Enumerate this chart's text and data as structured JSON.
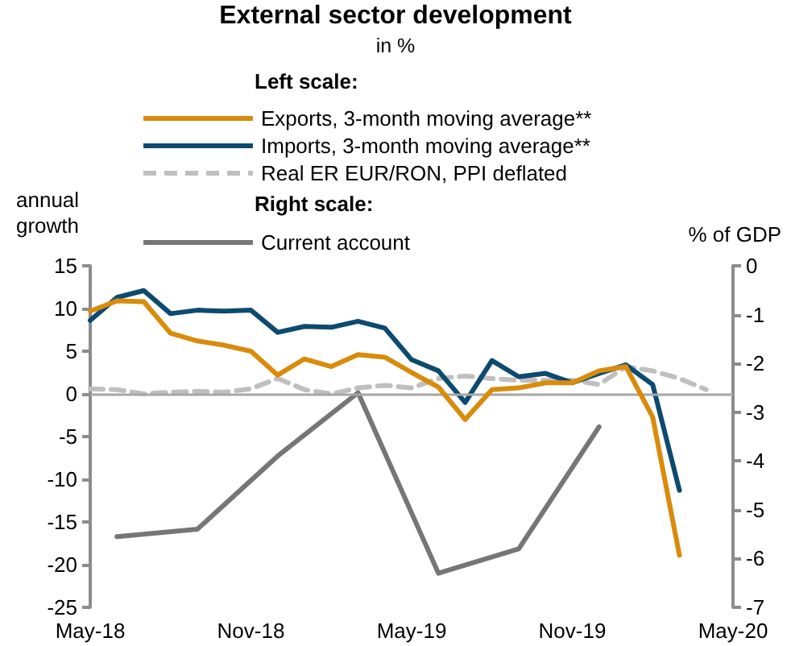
{
  "chart_data": {
    "type": "line",
    "title": "External sector development",
    "subtitle": "in %",
    "ylabel": "annual growth",
    "y2label": "% of GDP",
    "annotations": [
      "Left scale:",
      "Right scale:"
    ],
    "categories": [
      "May-18",
      null,
      null,
      null,
      null,
      null,
      "Nov-18",
      null,
      null,
      null,
      null,
      null,
      "May-19",
      null,
      null,
      null,
      null,
      null,
      "Nov-19",
      null,
      null,
      null,
      null,
      null,
      "May-20"
    ],
    "series": [
      {
        "name": "Exports, 3-month moving average**",
        "color": "#d98b0b",
        "values": [
          9.7,
          10.9,
          10.8,
          7.1,
          6.2,
          5.7,
          5.0,
          2.2,
          4.1,
          3.2,
          4.6,
          4.3,
          2.5,
          0.8,
          -3.0,
          0.5,
          0.7,
          1.3,
          1.3,
          2.7,
          3.2,
          -2.7,
          -18.9,
          null,
          null
        ]
      },
      {
        "name": "Imports, 3-month moving average**",
        "color": "#0d4a70",
        "values": [
          8.6,
          11.3,
          12.1,
          9.4,
          9.8,
          9.7,
          9.8,
          7.2,
          7.9,
          7.8,
          8.5,
          7.7,
          4.0,
          2.7,
          -1.0,
          3.9,
          2.0,
          2.4,
          1.3,
          2.4,
          3.4,
          1.1,
          -11.3,
          null,
          null
        ]
      },
      {
        "name": "Real ER EUR/RON, PPI deflated",
        "color": "#bfbfbf",
        "line_style": "dashed",
        "values": [
          0.6,
          0.5,
          0.0,
          0.2,
          0.3,
          0.2,
          0.6,
          1.8,
          0.5,
          0.0,
          0.7,
          1.0,
          0.7,
          1.8,
          2.1,
          1.8,
          1.6,
          1.6,
          1.6,
          1.1,
          3.2,
          2.7,
          1.8,
          0.5,
          null
        ]
      },
      {
        "name": "Current account",
        "color": "#767676",
        "axis": "y2",
        "values": [
          null,
          -5.55,
          null,
          null,
          -5.4,
          null,
          null,
          -3.9,
          null,
          null,
          -2.6,
          null,
          null,
          -6.3,
          null,
          null,
          -5.8,
          null,
          null,
          -3.3,
          null,
          null,
          null,
          null,
          null
        ]
      }
    ],
    "ylim": [
      -25,
      15
    ],
    "yticks": [
      -25,
      -20,
      -15,
      -10,
      -5,
      0,
      5,
      10,
      15
    ],
    "y2lim": [
      -7,
      0
    ],
    "y2ticks": [
      -7,
      -6,
      -5,
      -4,
      -3,
      -2,
      -1,
      0
    ],
    "ref_lines": [
      {
        "axis": "y",
        "value": 0,
        "color": "#a6a6a6"
      }
    ],
    "legend": "top",
    "grid": false,
    "marker": "none",
    "line_style": "solid"
  }
}
